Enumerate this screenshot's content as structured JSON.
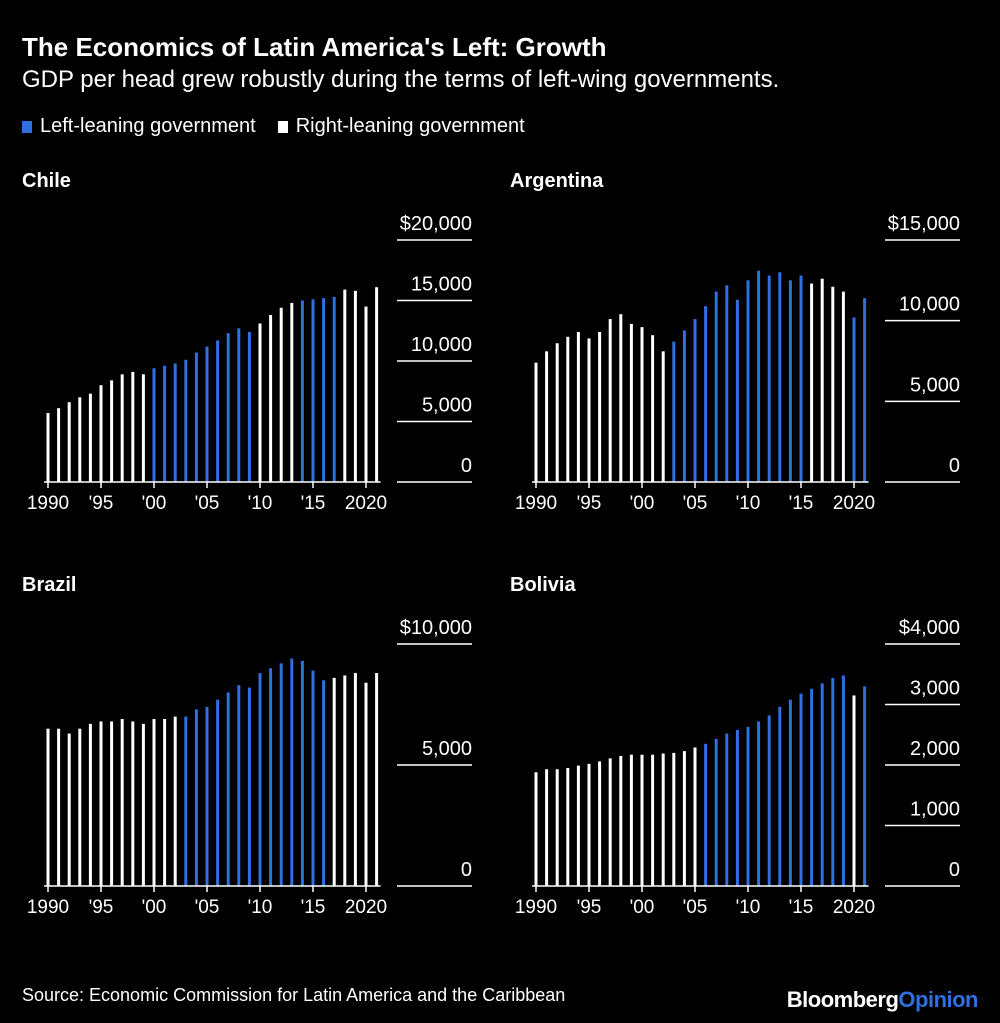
{
  "header": {
    "title": "The Economics of Latin America's Left: Growth",
    "subtitle": "GDP per head grew robustly during the terms of left-wing governments."
  },
  "legend": {
    "left_label": "Left-leaning government",
    "right_label": "Right-leaning government"
  },
  "colors": {
    "left": "#2f6fe0",
    "right": "#ffffff",
    "background": "#000000"
  },
  "footer": {
    "source": "Source: Economic Commission for Latin America and the Caribbean",
    "brand_1": "Bloomberg",
    "brand_2": "Opinion"
  },
  "chart_data": [
    {
      "type": "bar",
      "title": "Chile",
      "x": [
        1990,
        1991,
        1992,
        1993,
        1994,
        1995,
        1996,
        1997,
        1998,
        1999,
        2000,
        2001,
        2002,
        2003,
        2004,
        2005,
        2006,
        2007,
        2008,
        2009,
        2010,
        2011,
        2012,
        2013,
        2014,
        2015,
        2016,
        2017,
        2018,
        2019,
        2020,
        2021
      ],
      "values": [
        5700,
        6100,
        6600,
        7000,
        7300,
        8000,
        8400,
        8900,
        9100,
        8900,
        9400,
        9600,
        9800,
        10100,
        10700,
        11200,
        11700,
        12300,
        12700,
        12400,
        13100,
        13800,
        14400,
        14800,
        15000,
        15100,
        15200,
        15300,
        15900,
        15800,
        14500,
        16100
      ],
      "government": [
        "R",
        "R",
        "R",
        "R",
        "R",
        "R",
        "R",
        "R",
        "R",
        "R",
        "L",
        "L",
        "L",
        "L",
        "L",
        "L",
        "L",
        "L",
        "L",
        "L",
        "R",
        "R",
        "R",
        "R",
        "L",
        "L",
        "L",
        "L",
        "R",
        "R",
        "R",
        "R"
      ],
      "ylim": [
        0,
        20000
      ],
      "yticks": [
        "0",
        "5,000",
        "10,000",
        "15,000",
        "$20,000"
      ],
      "xticks": [
        "1990",
        "'95",
        "'00",
        "'05",
        "'10",
        "'15",
        "2020"
      ]
    },
    {
      "type": "bar",
      "title": "Argentina",
      "x": [
        1990,
        1991,
        1992,
        1993,
        1994,
        1995,
        1996,
        1997,
        1998,
        1999,
        2000,
        2001,
        2002,
        2003,
        2004,
        2005,
        2006,
        2007,
        2008,
        2009,
        2010,
        2011,
        2012,
        2013,
        2014,
        2015,
        2016,
        2017,
        2018,
        2019,
        2020,
        2021
      ],
      "values": [
        7400,
        8100,
        8600,
        9000,
        9300,
        8900,
        9300,
        10100,
        10400,
        9800,
        9600,
        9100,
        8100,
        8700,
        9400,
        10100,
        10900,
        11800,
        12200,
        11300,
        12500,
        13100,
        12800,
        13000,
        12500,
        12800,
        12300,
        12600,
        12100,
        11800,
        10200,
        11400
      ],
      "government": [
        "R",
        "R",
        "R",
        "R",
        "R",
        "R",
        "R",
        "R",
        "R",
        "R",
        "R",
        "R",
        "R",
        "L",
        "L",
        "L",
        "L",
        "L",
        "L",
        "L",
        "L",
        "L",
        "L",
        "L",
        "L",
        "L",
        "R",
        "R",
        "R",
        "R",
        "L",
        "L"
      ],
      "ylim": [
        0,
        15000
      ],
      "yticks": [
        "0",
        "5,000",
        "10,000",
        "$15,000"
      ],
      "xticks": [
        "1990",
        "'95",
        "'00",
        "'05",
        "'10",
        "'15",
        "2020"
      ]
    },
    {
      "type": "bar",
      "title": "Brazil",
      "x": [
        1990,
        1991,
        1992,
        1993,
        1994,
        1995,
        1996,
        1997,
        1998,
        1999,
        2000,
        2001,
        2002,
        2003,
        2004,
        2005,
        2006,
        2007,
        2008,
        2009,
        2010,
        2011,
        2012,
        2013,
        2014,
        2015,
        2016,
        2017,
        2018,
        2019,
        2020,
        2021
      ],
      "values": [
        6500,
        6500,
        6300,
        6500,
        6700,
        6800,
        6800,
        6900,
        6800,
        6700,
        6900,
        6900,
        7000,
        7000,
        7300,
        7400,
        7700,
        8000,
        8300,
        8200,
        8800,
        9000,
        9200,
        9400,
        9300,
        8900,
        8500,
        8600,
        8700,
        8800,
        8400,
        8800
      ],
      "government": [
        "R",
        "R",
        "R",
        "R",
        "R",
        "R",
        "R",
        "R",
        "R",
        "R",
        "R",
        "R",
        "R",
        "L",
        "L",
        "L",
        "L",
        "L",
        "L",
        "L",
        "L",
        "L",
        "L",
        "L",
        "L",
        "L",
        "L",
        "R",
        "R",
        "R",
        "R",
        "R"
      ],
      "ylim": [
        0,
        10000
      ],
      "yticks": [
        "0",
        "5,000",
        "$10,000"
      ],
      "xticks": [
        "1990",
        "'95",
        "'00",
        "'05",
        "'10",
        "'15",
        "2020"
      ]
    },
    {
      "type": "bar",
      "title": "Bolivia",
      "x": [
        1990,
        1991,
        1992,
        1993,
        1994,
        1995,
        1996,
        1997,
        1998,
        1999,
        2000,
        2001,
        2002,
        2003,
        2004,
        2005,
        2006,
        2007,
        2008,
        2009,
        2010,
        2011,
        2012,
        2013,
        2014,
        2015,
        2016,
        2017,
        2018,
        2019,
        2020,
        2021
      ],
      "values": [
        1880,
        1930,
        1930,
        1950,
        1990,
        2020,
        2060,
        2110,
        2150,
        2170,
        2170,
        2170,
        2190,
        2200,
        2230,
        2290,
        2350,
        2430,
        2520,
        2580,
        2630,
        2720,
        2820,
        2960,
        3080,
        3180,
        3260,
        3350,
        3440,
        3480,
        3150,
        3300
      ],
      "government": [
        "R",
        "R",
        "R",
        "R",
        "R",
        "R",
        "R",
        "R",
        "R",
        "R",
        "R",
        "R",
        "R",
        "R",
        "R",
        "R",
        "L",
        "L",
        "L",
        "L",
        "L",
        "L",
        "L",
        "L",
        "L",
        "L",
        "L",
        "L",
        "L",
        "L",
        "R",
        "L"
      ],
      "ylim": [
        0,
        4000
      ],
      "yticks": [
        "0",
        "1,000",
        "2,000",
        "3,000",
        "$4,000"
      ],
      "xticks": [
        "1990",
        "'95",
        "'00",
        "'05",
        "'10",
        "'15",
        "2020"
      ]
    }
  ]
}
